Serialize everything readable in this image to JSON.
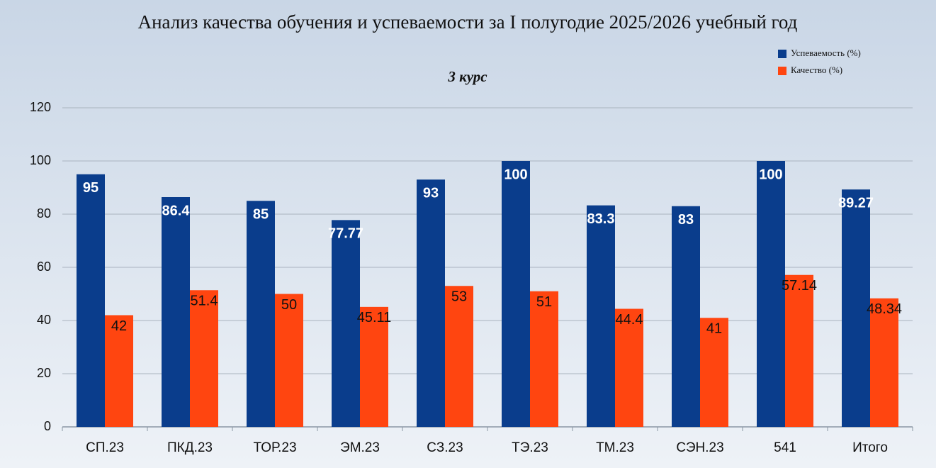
{
  "chart_data": {
    "type": "bar",
    "title": "Анализ качества обучения и успеваемости за I полугодие 2025/2026 учебный год",
    "subtitle": "3 курс",
    "categories": [
      "СП.23",
      "ПКД.23",
      "ТОР.23",
      "ЭМ.23",
      "СЗ.23",
      "ТЭ.23",
      "ТМ.23",
      "СЭН.23",
      "541",
      "Итого"
    ],
    "series": [
      {
        "name": "Успеваемость (%)",
        "color": "#0a3d8c",
        "values": [
          95,
          86.4,
          85,
          77.77,
          93,
          100,
          83.3,
          83,
          100,
          89.27
        ]
      },
      {
        "name": "Качество (%)",
        "color": "#ff4510",
        "values": [
          42,
          51.4,
          50,
          45.11,
          53,
          51,
          44.4,
          41,
          57.14,
          48.34
        ]
      }
    ],
    "ylim": [
      0,
      120
    ],
    "yticks": [
      0,
      20,
      40,
      60,
      80,
      100,
      120
    ],
    "grid": true,
    "legend": "top-right"
  }
}
